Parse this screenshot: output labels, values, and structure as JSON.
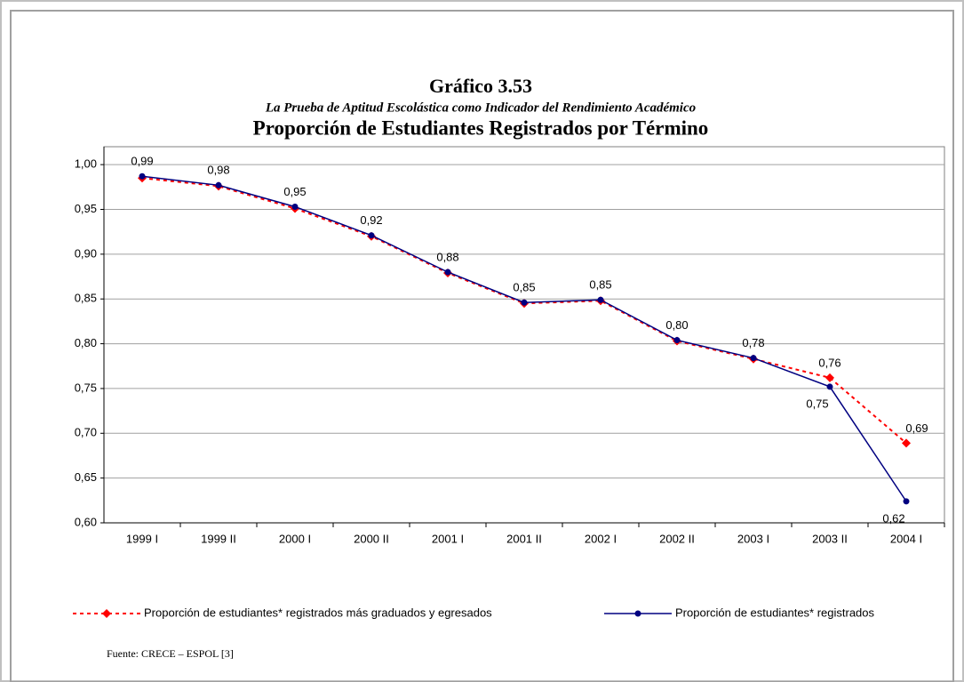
{
  "chart_data": {
    "type": "line",
    "title": "Gráfico 3.53",
    "subtitle": "La Prueba de Aptitud Escolástica como Indicador del Rendimiento Académico",
    "heading": "Proporción de Estudiantes Registrados por Término",
    "source": "Fuente: CRECE – ESPOL [3]",
    "categories": [
      "1999 I",
      "1999 II",
      "2000 I",
      "2000 II",
      "2001 I",
      "2001 II",
      "2002 I",
      "2002 II",
      "2003 I",
      "2003 II",
      "2004 I"
    ],
    "series": [
      {
        "name": "Proporción de estudiantes* registrados más graduados y egresados",
        "color": "#ff0000",
        "dash": true,
        "marker": "diamond",
        "values": [
          0.985,
          0.976,
          0.951,
          0.92,
          0.879,
          0.845,
          0.848,
          0.803,
          0.783,
          0.762,
          0.689
        ],
        "value_labels": [
          null,
          null,
          null,
          null,
          null,
          null,
          null,
          null,
          null,
          "0,76",
          "0,69"
        ]
      },
      {
        "name": "Proporción de estudiantes* registrados",
        "color": "#000080",
        "dash": false,
        "marker": "circle",
        "values": [
          0.987,
          0.977,
          0.953,
          0.921,
          0.88,
          0.846,
          0.849,
          0.804,
          0.784,
          0.752,
          0.624
        ],
        "value_labels": [
          "0,99",
          "0,98",
          "0,95",
          "0,92",
          "0,88",
          "0,85",
          "0,85",
          "0,80",
          "0,78",
          "0,75",
          "0,62"
        ]
      }
    ],
    "ylim": [
      0.6,
      1.02
    ],
    "yticks": [
      {
        "value": 0.6,
        "label": "0,60"
      },
      {
        "value": 0.65,
        "label": "0,65"
      },
      {
        "value": 0.7,
        "label": "0,70"
      },
      {
        "value": 0.75,
        "label": "0,75"
      },
      {
        "value": 0.8,
        "label": "0,80"
      },
      {
        "value": 0.85,
        "label": "0,85"
      },
      {
        "value": 0.9,
        "label": "0,90"
      },
      {
        "value": 0.95,
        "label": "0,95"
      },
      {
        "value": 1.0,
        "label": "1,00"
      }
    ],
    "grid": true
  }
}
